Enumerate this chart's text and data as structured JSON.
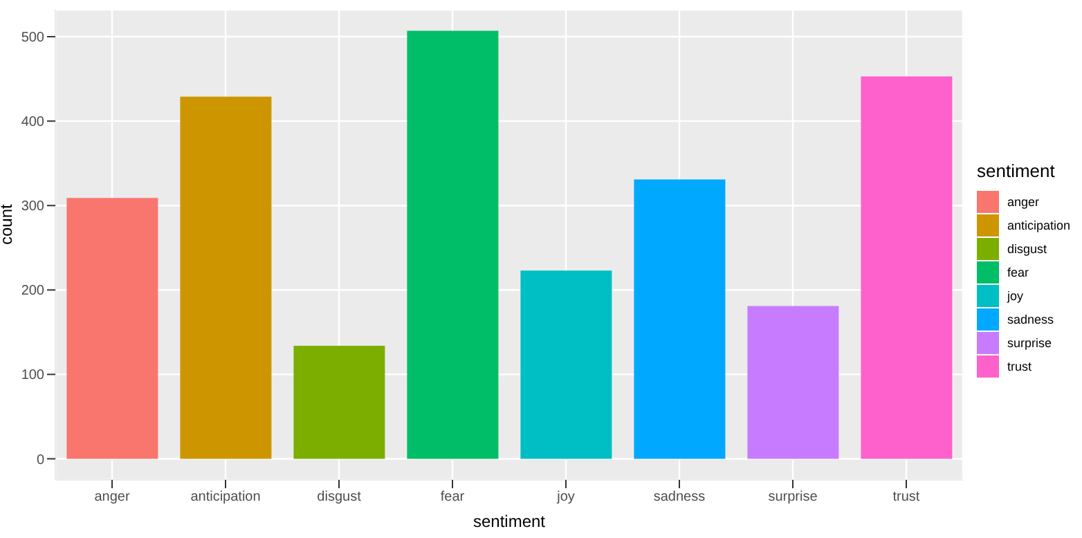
{
  "chart_data": {
    "type": "bar",
    "xlabel": "sentiment",
    "ylabel": "count",
    "legend_title": "sentiment",
    "legend": "right",
    "grid": true,
    "categories": [
      "anger",
      "anticipation",
      "disgust",
      "fear",
      "joy",
      "sadness",
      "surprise",
      "trust"
    ],
    "series": [
      {
        "name": "anger",
        "color": "#f8766d",
        "values": [
          309,
          null,
          null,
          null,
          null,
          null,
          null,
          null
        ]
      },
      {
        "name": "anticipation",
        "color": "#cd9600",
        "values": [
          null,
          429,
          null,
          null,
          null,
          null,
          null,
          null
        ]
      },
      {
        "name": "disgust",
        "color": "#7cae00",
        "values": [
          null,
          null,
          134,
          null,
          null,
          null,
          null,
          null
        ]
      },
      {
        "name": "fear",
        "color": "#00be67",
        "values": [
          null,
          null,
          null,
          507,
          null,
          null,
          null,
          null
        ]
      },
      {
        "name": "joy",
        "color": "#00bfc4",
        "values": [
          null,
          null,
          null,
          null,
          223,
          null,
          null,
          null
        ]
      },
      {
        "name": "sadness",
        "color": "#00a9ff",
        "values": [
          null,
          null,
          null,
          null,
          null,
          331,
          null,
          null
        ]
      },
      {
        "name": "surprise",
        "color": "#c77cff",
        "values": [
          null,
          null,
          null,
          null,
          null,
          null,
          181,
          null
        ]
      },
      {
        "name": "trust",
        "color": "#ff61cc",
        "values": [
          null,
          null,
          null,
          null,
          null,
          null,
          null,
          453
        ]
      }
    ],
    "ylim": [
      -25,
      532
    ],
    "yticks": [
      0,
      100,
      200,
      300,
      400,
      500
    ]
  }
}
